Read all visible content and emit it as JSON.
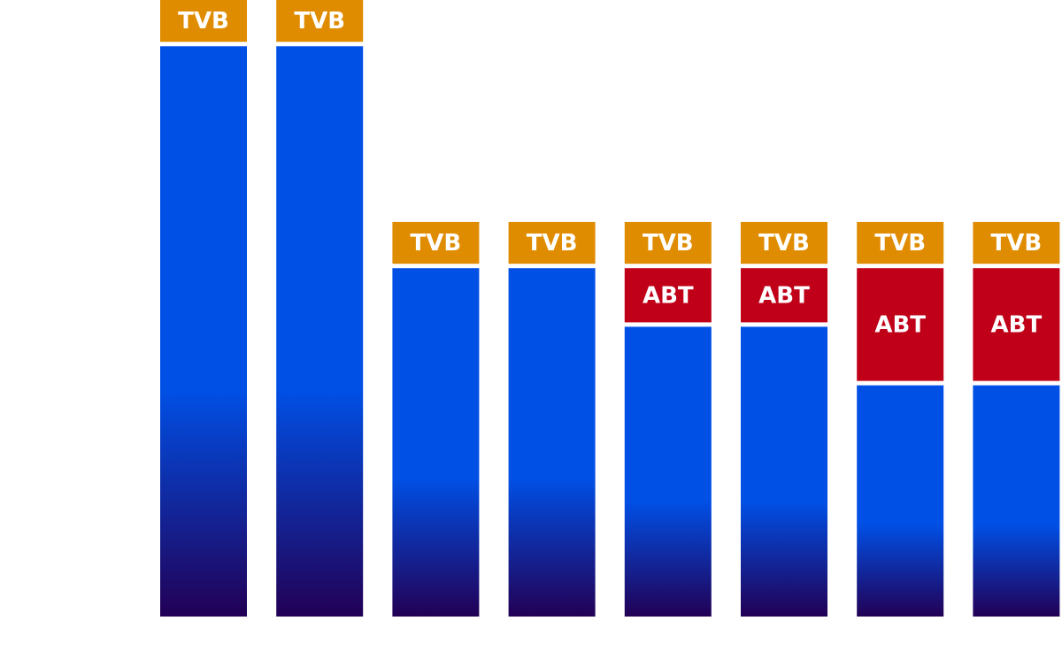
{
  "chart_data": {
    "type": "bar",
    "stacked": true,
    "grid": false,
    "legend": "none",
    "title": "",
    "xlabel": "",
    "ylabel": "",
    "ylim": [
      0,
      100
    ],
    "categories": [
      "",
      "",
      "",
      "",
      "",
      "",
      "",
      ""
    ],
    "series": [
      {
        "key": "base",
        "values": [
          92.5,
          92.5,
          56.5,
          56.5,
          47.0,
          47.0,
          37.5,
          37.5
        ],
        "gradient": [
          "#0050e6",
          "#220055"
        ]
      },
      {
        "key": "abt",
        "label": "ABT",
        "values": [
          0,
          0,
          0,
          0,
          9.5,
          9.5,
          19.0,
          19.0
        ],
        "color": "#c00018"
      },
      {
        "key": "tvb",
        "label": "TVB",
        "values": [
          7.5,
          7.5,
          7.5,
          7.5,
          7.5,
          7.5,
          7.5,
          7.5
        ],
        "color": "#e08c00"
      }
    ]
  }
}
